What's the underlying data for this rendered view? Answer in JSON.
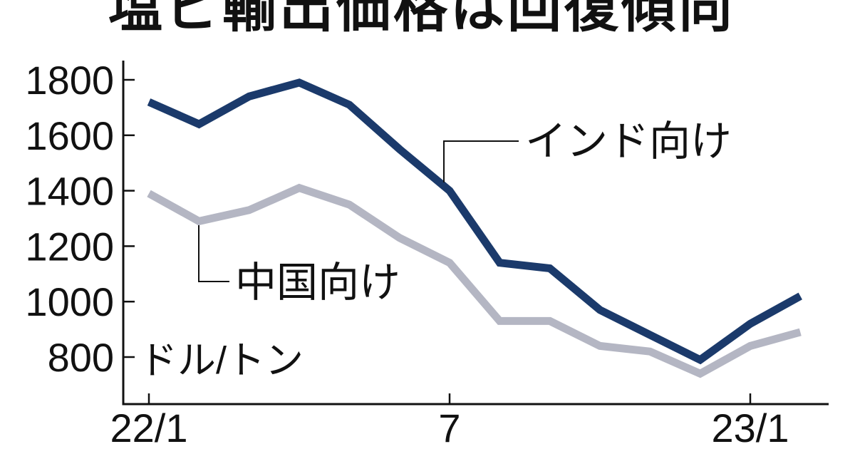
{
  "title": "塩ビ輸出価格は回復傾向",
  "colors": {
    "axis": "#111111",
    "text": "#111111",
    "background": "#ffffff",
    "india_line": "#1b3a6b",
    "china_line": "#b4b6c3"
  },
  "chart_data": {
    "type": "line",
    "title": "塩ビ輸出価格は回復傾向",
    "unit_label": "ドル/トン",
    "xlabel": "",
    "ylabel": "ドル/トン",
    "grid": false,
    "legend_position": "inline-callouts",
    "x": [
      "22/1",
      "22/2",
      "22/3",
      "22/4",
      "22/5",
      "22/6",
      "22/7",
      "22/8",
      "22/9",
      "22/10",
      "22/11",
      "22/12",
      "23/1",
      "23/2"
    ],
    "x_tick_labels": [
      {
        "label": "22/1",
        "index": 0
      },
      {
        "label": "7",
        "index": 6
      },
      {
        "label": "23/1",
        "index": 12
      }
    ],
    "y_ticks": [
      1800,
      1600,
      1400,
      1200,
      1000,
      800
    ],
    "ylim": [
      630,
      1870
    ],
    "series": [
      {
        "name": "インド向け",
        "color": "#1b3a6b",
        "values": [
          1720,
          1640,
          1740,
          1790,
          1710,
          1550,
          1400,
          1140,
          1120,
          970,
          880,
          790,
          920,
          1020
        ]
      },
      {
        "name": "中国向け",
        "color": "#b4b6c3",
        "values": [
          1390,
          1290,
          1330,
          1410,
          1350,
          1230,
          1140,
          930,
          930,
          840,
          820,
          740,
          840,
          890
        ]
      }
    ]
  }
}
